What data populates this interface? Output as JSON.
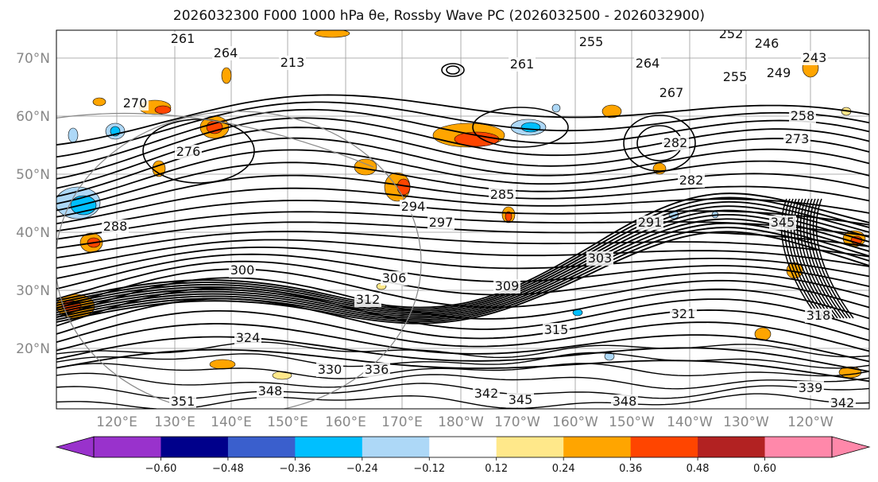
{
  "title": "2026032300 F000 1000 hPa θe, Rossby Wave PC (2026032500 - 2026032900)",
  "axes": {
    "lat_labels": [
      "70°N",
      "60°N",
      "50°N",
      "40°N",
      "30°N",
      "20°N"
    ],
    "lon_labels": [
      "120°E",
      "130°E",
      "140°E",
      "150°E",
      "160°E",
      "170°E",
      "180°W",
      "170°W",
      "160°W",
      "150°W",
      "140°W",
      "130°W",
      "120°W"
    ]
  },
  "colorbar": {
    "ticks": [
      "−0.60",
      "−0.48",
      "−0.36",
      "−0.24",
      "−0.12",
      "0.12",
      "0.24",
      "0.36",
      "0.48",
      "0.60"
    ],
    "colors": [
      "#9932cc",
      "#00008b",
      "#3a5fcd",
      "#00bfff",
      "#add8f7",
      "#ffffff",
      "#ffe88a",
      "#ffa500",
      "#ff4500",
      "#b22222",
      "#ff88aa"
    ],
    "extend_low_color": "#9932cc",
    "extend_high_color": "#ff88aa"
  },
  "contour_labels": [
    "261",
    "264",
    "213",
    "255",
    "261",
    "264",
    "267",
    "252",
    "246",
    "243",
    "249",
    "255",
    "258",
    "273",
    "270",
    "276",
    "282",
    "282",
    "285",
    "288",
    "291",
    "294",
    "297",
    "300",
    "303",
    "306",
    "309",
    "312",
    "315",
    "318",
    "321",
    "324",
    "330",
    "336",
    "342",
    "345",
    "348",
    "348",
    "351",
    "339",
    "342",
    "345"
  ],
  "anomaly_colors": {
    "orange": "#ffa500",
    "red": "#ff4500",
    "yellow": "#ffe88a",
    "light_blue": "#add8f7",
    "blue": "#00bfff"
  }
}
